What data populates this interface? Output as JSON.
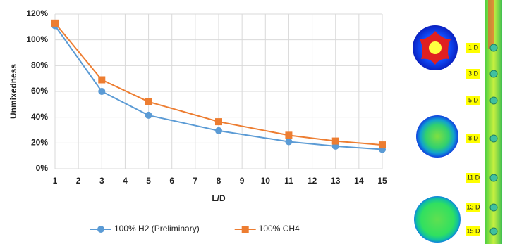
{
  "chart_data": {
    "type": "line",
    "x_label": "L/D",
    "y_label": "Unmixedness",
    "x": [
      1,
      3,
      5,
      8,
      11,
      13,
      15
    ],
    "series": [
      {
        "name": "100% H2 (Preliminary)",
        "color": "#5b9bd5",
        "marker": "circle",
        "values": [
          111,
          60,
          41.5,
          29.5,
          21,
          17.5,
          15
        ]
      },
      {
        "name": "100% CH4",
        "color": "#ed7d31",
        "marker": "square",
        "values": [
          113,
          69,
          52,
          36.5,
          26,
          21.5,
          18.5
        ]
      }
    ],
    "xlim": [
      1,
      15
    ],
    "xticks": [
      1,
      2,
      3,
      4,
      5,
      6,
      7,
      8,
      9,
      10,
      11,
      12,
      13,
      14,
      15
    ],
    "ylim": [
      0,
      120
    ],
    "yticks": [
      {
        "value": 0,
        "label": "0%"
      },
      {
        "value": 20,
        "label": "20%"
      },
      {
        "value": 40,
        "label": "40%"
      },
      {
        "value": 60,
        "label": "60%"
      },
      {
        "value": 80,
        "label": "80%"
      },
      {
        "value": 100,
        "label": "100%"
      },
      {
        "value": 120,
        "label": "120%"
      }
    ],
    "grid": true,
    "legend": "bottom"
  },
  "figure": {
    "labels": [
      "1 D",
      "3 D",
      "5 D",
      "8 D",
      "11 D",
      "13 D",
      "15 D"
    ]
  }
}
